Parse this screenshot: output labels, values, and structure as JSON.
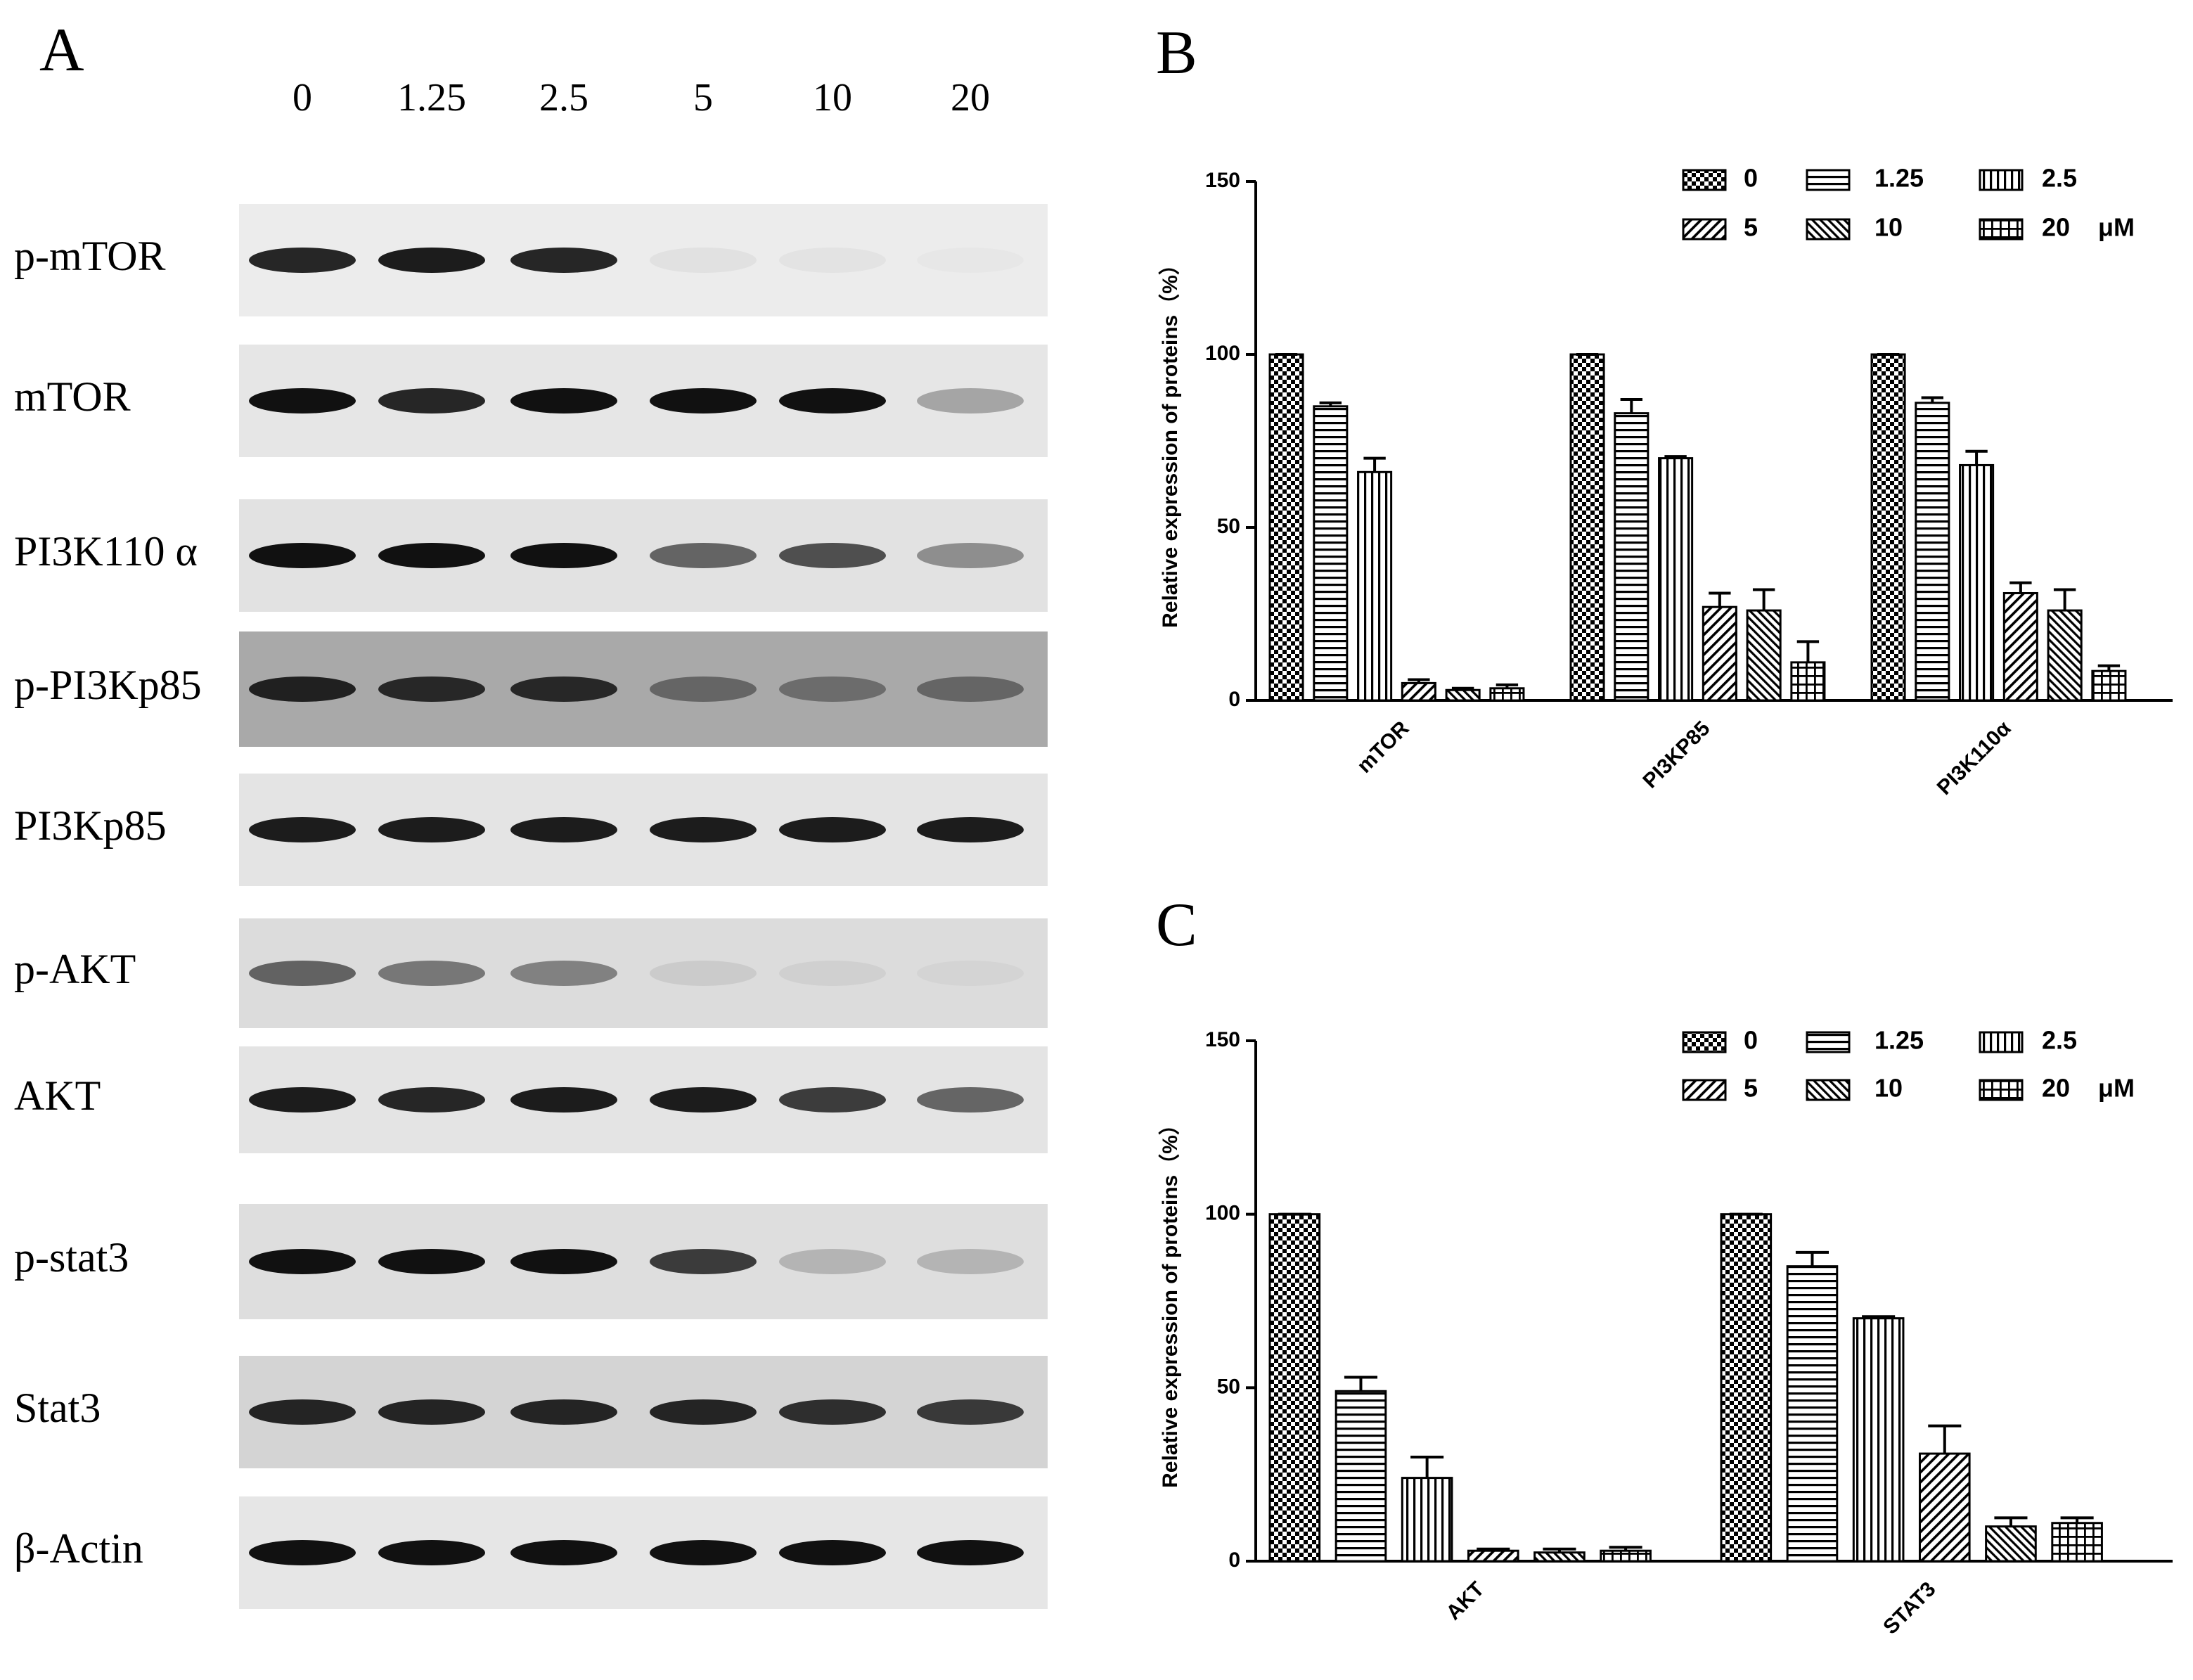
{
  "panel_a": {
    "label": "A",
    "lanes": [
      "0",
      "1.25",
      "2.5",
      "5",
      "10",
      "20"
    ],
    "proteins": [
      "p-mTOR",
      "mTOR",
      "PI3K110 α",
      "p-PI3Kp85",
      "PI3Kp85",
      "p-AKT",
      "AKT",
      "p-stat3",
      "Stat3",
      "β-Actin"
    ]
  },
  "chart_data": [
    {
      "type": "bar",
      "label": "B",
      "y_label": "Relative expression of proteins（%）",
      "categories": [
        "mTOR",
        "PI3KP85",
        "PI3K110α"
      ],
      "legend_unit": "μM",
      "color": "#000000",
      "series": [
        {
          "name": "0",
          "pattern": "checker",
          "values": [
            100,
            100,
            100
          ],
          "errors": [
            0,
            0,
            0
          ]
        },
        {
          "name": "1.25",
          "pattern": "horizontal",
          "values": [
            85,
            83,
            86
          ],
          "errors": [
            1,
            4,
            1.5
          ]
        },
        {
          "name": "2.5",
          "pattern": "vertical",
          "values": [
            66,
            70,
            68
          ],
          "errors": [
            4,
            0.5,
            4
          ]
        },
        {
          "name": "5",
          "pattern": "diagonal",
          "values": [
            5,
            27,
            31
          ],
          "errors": [
            1,
            4,
            3
          ]
        },
        {
          "name": "10",
          "pattern": "back-diagonal",
          "values": [
            3,
            26,
            26
          ],
          "errors": [
            0.5,
            6,
            6
          ]
        },
        {
          "name": "20",
          "pattern": "grid",
          "values": [
            3.5,
            11,
            8.5
          ],
          "errors": [
            1,
            6,
            1.5
          ]
        }
      ],
      "ylim": [
        0,
        150
      ],
      "yticks": [
        0,
        50,
        100,
        150
      ]
    },
    {
      "type": "bar",
      "label": "C",
      "y_label": "Relative expression of proteins（%）",
      "categories": [
        "AKT",
        "STAT3"
      ],
      "legend_unit": "μM",
      "color": "#000000",
      "series": [
        {
          "name": "0",
          "pattern": "checker",
          "values": [
            100,
            100
          ],
          "errors": [
            0,
            0
          ]
        },
        {
          "name": "1.25",
          "pattern": "horizontal",
          "values": [
            49,
            85
          ],
          "errors": [
            4,
            4
          ]
        },
        {
          "name": "2.5",
          "pattern": "vertical",
          "values": [
            24,
            70
          ],
          "errors": [
            6,
            0.5
          ]
        },
        {
          "name": "5",
          "pattern": "diagonal",
          "values": [
            3,
            31
          ],
          "errors": [
            0.5,
            8
          ]
        },
        {
          "name": "10",
          "pattern": "back-diagonal",
          "values": [
            2.5,
            10
          ],
          "errors": [
            1,
            2.5
          ]
        },
        {
          "name": "20",
          "pattern": "grid",
          "values": [
            3,
            11
          ],
          "errors": [
            1,
            1.5
          ]
        }
      ],
      "ylim": [
        0,
        150
      ],
      "yticks": [
        0,
        50,
        100,
        150
      ]
    }
  ]
}
